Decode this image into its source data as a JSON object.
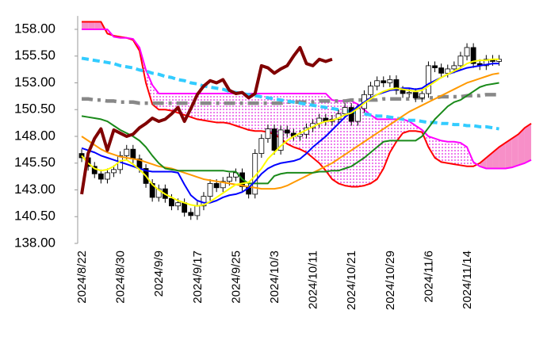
{
  "chart_data": {
    "type": "candlestick",
    "categories": [
      "2024/8/22",
      null,
      null,
      null,
      null,
      null,
      "2024/8/30",
      null,
      null,
      null,
      null,
      null,
      "2024/9/9",
      null,
      null,
      null,
      null,
      null,
      "2024/9/17",
      null,
      null,
      null,
      null,
      null,
      "2024/9/25",
      null,
      null,
      null,
      null,
      null,
      "2024/10/3",
      null,
      null,
      null,
      null,
      null,
      "2024/10/11",
      null,
      null,
      null,
      null,
      null,
      "2024/10/21",
      null,
      null,
      null,
      null,
      null,
      "2024/10/29",
      null,
      null,
      null,
      null,
      null,
      "2024/11/6",
      null,
      null,
      null,
      null,
      null,
      "2024/11/14",
      null,
      null,
      null,
      null,
      null,
      null,
      null,
      null,
      null,
      null
    ],
    "open": [
      146.4,
      146.0,
      145.2,
      144.5,
      144.0,
      144.6,
      144.9,
      146.2,
      146.8,
      145.9,
      145.0,
      143.6,
      142.3,
      143.1,
      142.2,
      141.5,
      141.8,
      140.9,
      140.6,
      141.5,
      142.4,
      143.6,
      143.2,
      143.8,
      144.2,
      144.6,
      143.3,
      142.6,
      146.4,
      147.8,
      148.7,
      146.7,
      148.6,
      148.3,
      148.0,
      148.2,
      148.8,
      149.2,
      149.7,
      149.4,
      149.6,
      150.1,
      150.7,
      149.4,
      150.6,
      151.9,
      152.7,
      153.2,
      153.0,
      153.3,
      152.3,
      152.0,
      152.1,
      151.6,
      152.0,
      154.6,
      154.4,
      153.9,
      154.3,
      154.6,
      155.5,
      156.3,
      154.8,
      154.6,
      155.2,
      155.0,
      null,
      null,
      null,
      null,
      null
    ],
    "high": [
      146.8,
      146.4,
      145.6,
      144.9,
      145.0,
      145.3,
      146.6,
      147.2,
      147.2,
      146.3,
      145.4,
      144.0,
      143.5,
      143.5,
      142.6,
      142.2,
      142.2,
      141.3,
      141.9,
      142.8,
      144.0,
      144.0,
      144.2,
      144.6,
      145.0,
      145.0,
      143.7,
      146.8,
      148.2,
      149.1,
      149.1,
      149.0,
      149.0,
      148.7,
      148.6,
      149.2,
      149.6,
      150.1,
      150.1,
      150.0,
      150.5,
      151.1,
      151.1,
      151.0,
      152.3,
      153.1,
      153.6,
      153.6,
      153.7,
      153.7,
      152.7,
      152.5,
      152.5,
      152.4,
      155.0,
      155.0,
      154.8,
      154.7,
      155.0,
      155.9,
      156.7,
      156.7,
      155.2,
      155.6,
      155.6,
      155.6,
      null,
      null,
      null,
      null,
      null
    ],
    "low": [
      145.6,
      144.8,
      144.1,
      143.6,
      143.6,
      144.2,
      144.5,
      145.8,
      145.5,
      144.6,
      143.2,
      141.9,
      141.9,
      141.8,
      141.1,
      141.1,
      140.5,
      140.2,
      140.2,
      141.1,
      142.0,
      142.8,
      142.8,
      143.4,
      143.8,
      142.9,
      142.2,
      142.2,
      146.0,
      147.4,
      146.3,
      146.3,
      147.9,
      147.6,
      147.6,
      147.8,
      148.4,
      148.8,
      149.0,
      149.0,
      149.2,
      149.7,
      149.0,
      149.0,
      150.2,
      151.5,
      152.3,
      152.6,
      152.6,
      151.9,
      151.6,
      151.6,
      151.2,
      151.2,
      151.6,
      154.0,
      153.5,
      153.5,
      153.9,
      154.2,
      155.1,
      154.4,
      154.2,
      154.2,
      154.6,
      154.6,
      null,
      null,
      null,
      null,
      null
    ],
    "close": [
      146.0,
      145.2,
      144.5,
      144.0,
      144.6,
      144.9,
      146.2,
      146.8,
      145.9,
      145.0,
      143.6,
      142.3,
      143.1,
      142.2,
      141.5,
      141.8,
      140.9,
      140.6,
      141.5,
      142.4,
      143.6,
      143.2,
      143.8,
      144.2,
      144.6,
      143.3,
      142.6,
      146.4,
      147.8,
      148.7,
      146.7,
      148.6,
      148.3,
      148.0,
      148.2,
      148.8,
      149.2,
      149.7,
      149.4,
      149.6,
      150.1,
      150.7,
      149.4,
      150.6,
      151.9,
      152.7,
      153.2,
      153.0,
      153.3,
      152.3,
      152.0,
      152.1,
      151.6,
      152.0,
      154.6,
      154.4,
      153.9,
      154.3,
      154.6,
      155.5,
      156.3,
      154.8,
      154.6,
      155.2,
      155.0,
      155.2,
      null,
      null,
      null,
      null,
      null
    ],
    "up_color": "#ffffff",
    "down_color": "#000000",
    "cloud": {
      "span_a": {
        "color": "#ff0000",
        "values": [
          158.7,
          158.7,
          158.7,
          158.7,
          157.6,
          157.4,
          157.3,
          157.2,
          157.0,
          156.0,
          153.0,
          151.0,
          150.5,
          150.5,
          150.4,
          150.2,
          150.0,
          149.8,
          149.6,
          149.5,
          149.4,
          149.3,
          149.3,
          149.2,
          149.0,
          148.8,
          148.6,
          148.5,
          148.5,
          148.4,
          148.2,
          147.8,
          147.3,
          147.0,
          146.8,
          146.5,
          146.0,
          145.5,
          144.8,
          144.0,
          143.6,
          143.4,
          143.3,
          143.3,
          143.4,
          143.6,
          144.0,
          145.0,
          146.5,
          147.5,
          148.3,
          148.5,
          148.5,
          148.4,
          147.0,
          146.0,
          145.6,
          145.5,
          145.4,
          145.3,
          145.2,
          145.2,
          145.5,
          146.0,
          146.5,
          147.0,
          147.4,
          147.8,
          148.2,
          148.8,
          149.2
        ]
      },
      "span_b": {
        "color": "#ff00ff",
        "values": [
          158.0,
          158.0,
          158.0,
          158.0,
          158.0,
          157.3,
          157.2,
          157.2,
          157.1,
          156.3,
          154.2,
          152.8,
          152.0,
          152.0,
          152.0,
          152.0,
          152.0,
          152.0,
          152.0,
          152.0,
          152.0,
          152.0,
          152.0,
          152.0,
          152.0,
          152.0,
          152.0,
          152.0,
          152.0,
          152.0,
          152.0,
          152.0,
          152.0,
          152.0,
          152.0,
          152.0,
          152.0,
          152.0,
          152.0,
          151.4,
          151.3,
          151.3,
          151.3,
          151.0,
          150.5,
          150.0,
          149.6,
          149.6,
          149.6,
          149.6,
          149.6,
          149.4,
          149.0,
          148.6,
          148.0,
          147.8,
          147.6,
          147.5,
          147.5,
          147.4,
          147.0,
          145.6,
          145.2,
          145.0,
          145.0,
          145.0,
          145.0,
          145.1,
          145.3,
          145.5,
          145.8
        ]
      },
      "a_above_color": "#f78fc8",
      "b_above_color": "#e020e0"
    },
    "series": [
      {
        "color": "#888888",
        "style": "dashdot",
        "values": [
          151.5,
          151.5,
          151.4,
          151.4,
          151.3,
          151.3,
          151.2,
          151.2,
          151.2,
          151.1,
          151.1,
          151.1,
          151.1,
          151.1,
          151.1,
          151.1,
          151.1,
          151.1,
          151.1,
          151.1,
          151.1,
          151.1,
          151.1,
          151.1,
          151.1,
          151.1,
          151.1,
          151.1,
          151.1,
          151.1,
          151.1,
          151.1,
          151.2,
          151.2,
          151.2,
          151.2,
          151.2,
          151.3,
          151.3,
          151.3,
          151.3,
          151.3,
          151.4,
          151.4,
          151.4,
          151.4,
          151.4,
          151.5,
          151.5,
          151.5,
          151.5,
          151.5,
          151.6,
          151.6,
          151.6,
          151.6,
          151.7,
          151.7,
          151.7,
          151.7,
          151.8,
          151.8,
          151.8,
          151.9,
          151.9,
          151.9,
          null,
          null,
          null,
          null,
          null
        ]
      },
      {
        "color": "#33ccff",
        "style": "dashed",
        "values": [
          155.3,
          155.2,
          155.1,
          155.0,
          154.9,
          154.8,
          154.6,
          154.5,
          154.4,
          154.2,
          154.1,
          153.9,
          153.8,
          153.6,
          153.5,
          153.3,
          153.2,
          153.0,
          152.9,
          152.7,
          152.6,
          152.5,
          152.4,
          152.2,
          152.1,
          152.0,
          151.9,
          151.8,
          151.7,
          151.6,
          151.5,
          151.4,
          151.3,
          151.2,
          151.1,
          151.0,
          150.9,
          150.8,
          150.7,
          150.6,
          150.5,
          150.4,
          150.3,
          150.2,
          150.1,
          150.0,
          149.9,
          149.9,
          149.8,
          149.7,
          149.6,
          149.5,
          149.5,
          149.4,
          149.3,
          149.3,
          149.2,
          149.2,
          149.1,
          149.1,
          149.0,
          149.0,
          148.9,
          148.9,
          148.8,
          148.7,
          null,
          null,
          null,
          null,
          null
        ]
      },
      {
        "color": "#ff9900",
        "style": "solid",
        "values": [
          148.0,
          147.6,
          147.2,
          146.8,
          146.5,
          146.3,
          146.1,
          146.0,
          145.9,
          145.8,
          145.6,
          145.4,
          145.2,
          145.1,
          145.0,
          144.8,
          144.6,
          144.4,
          144.2,
          144.0,
          143.9,
          143.8,
          143.7,
          143.6,
          143.5,
          143.4,
          143.3,
          143.2,
          143.1,
          143.1,
          143.1,
          143.2,
          143.4,
          143.7,
          144.0,
          144.3,
          144.6,
          144.9,
          145.2,
          145.5,
          145.9,
          146.3,
          146.7,
          147.1,
          147.5,
          147.9,
          148.3,
          148.7,
          149.1,
          149.5,
          149.9,
          150.3,
          150.6,
          150.9,
          151.2,
          151.5,
          151.8,
          152.1,
          152.4,
          152.7,
          153.0,
          153.2,
          153.4,
          153.6,
          153.8,
          153.9,
          null,
          null,
          null,
          null,
          null
        ]
      },
      {
        "color": "#1a8a1a",
        "style": "solid",
        "values": [
          149.9,
          149.8,
          149.7,
          149.6,
          149.4,
          149.0,
          148.6,
          148.3,
          148.0,
          147.6,
          147.0,
          146.2,
          145.5,
          145.0,
          144.9,
          144.8,
          144.8,
          144.8,
          144.8,
          144.8,
          144.8,
          144.8,
          144.8,
          144.7,
          144.7,
          144.0,
          143.6,
          143.6,
          143.6,
          143.6,
          144.3,
          144.5,
          144.6,
          144.6,
          144.6,
          144.6,
          144.6,
          144.7,
          144.7,
          144.8,
          144.8,
          145.0,
          145.2,
          145.6,
          146.0,
          146.5,
          147.0,
          147.5,
          147.6,
          147.6,
          147.6,
          147.6,
          147.6,
          148.0,
          148.8,
          149.6,
          150.2,
          150.8,
          151.2,
          151.4,
          151.8,
          152.2,
          152.6,
          152.8,
          152.9,
          153.0,
          null,
          null,
          null,
          null,
          null
        ]
      },
      {
        "color": "#0000ff",
        "style": "solid",
        "values": [
          146.9,
          146.7,
          146.5,
          146.2,
          146.0,
          145.8,
          145.6,
          145.4,
          145.2,
          145.0,
          144.8,
          144.7,
          144.7,
          144.7,
          144.7,
          144.6,
          143.5,
          142.5,
          142.0,
          141.8,
          141.8,
          142.0,
          142.3,
          142.5,
          142.6,
          142.8,
          143.2,
          143.8,
          144.5,
          145.0,
          145.3,
          145.5,
          145.6,
          145.7,
          145.9,
          146.4,
          147.0,
          147.5,
          148.0,
          148.6,
          149.2,
          149.8,
          150.3,
          150.8,
          151.2,
          151.6,
          151.9,
          152.1,
          152.3,
          152.4,
          152.5,
          152.5,
          152.4,
          152.5,
          152.9,
          153.2,
          153.5,
          153.8,
          154.0,
          154.2,
          154.4,
          154.5,
          154.6,
          154.7,
          154.8,
          154.8,
          null,
          null,
          null,
          null,
          null
        ]
      },
      {
        "color": "#ffff00",
        "style": "solid",
        "values": [
          146.2,
          145.5,
          145.0,
          144.8,
          144.9,
          145.2,
          145.7,
          145.8,
          145.4,
          144.9,
          144.3,
          143.5,
          143.0,
          142.6,
          142.3,
          142.0,
          141.8,
          141.6,
          141.5,
          141.6,
          141.9,
          142.3,
          142.7,
          143.1,
          143.5,
          143.6,
          143.7,
          144.3,
          145.0,
          145.9,
          146.5,
          147.1,
          147.6,
          148.0,
          148.3,
          148.6,
          148.9,
          149.2,
          149.4,
          149.5,
          149.7,
          150.0,
          150.2,
          150.6,
          151.1,
          151.5,
          151.9,
          152.2,
          152.4,
          152.5,
          152.4,
          152.3,
          152.2,
          152.3,
          152.7,
          153.1,
          153.5,
          153.8,
          154.1,
          154.4,
          154.8,
          155.0,
          155.1,
          155.1,
          155.2,
          155.2,
          null,
          null,
          null,
          null,
          null
        ]
      },
      {
        "color": "#800000",
        "style": "thick",
        "values": [
          142.6,
          146.4,
          147.8,
          148.7,
          146.7,
          148.6,
          148.3,
          148.0,
          148.2,
          148.8,
          149.2,
          149.7,
          149.4,
          149.6,
          150.1,
          150.7,
          149.4,
          150.6,
          151.9,
          152.7,
          153.2,
          153.0,
          153.3,
          152.3,
          152.0,
          152.1,
          151.6,
          152.0,
          154.6,
          154.4,
          153.9,
          154.3,
          154.6,
          155.5,
          156.3,
          154.8,
          154.6,
          155.2,
          155.0,
          155.2,
          null,
          null,
          null,
          null,
          null,
          null,
          null,
          null,
          null,
          null,
          null,
          null,
          null,
          null,
          null,
          null,
          null,
          null,
          null,
          null,
          null,
          null,
          null,
          null,
          null,
          null,
          null,
          null,
          null,
          null,
          null
        ]
      }
    ],
    "ylim": [
      138,
      159.25
    ],
    "yticks": [
      {
        "value": 138,
        "label": "138.00"
      },
      {
        "value": 140.5,
        "label": "140.50"
      },
      {
        "value": 143,
        "label": "143.00"
      },
      {
        "value": 145.5,
        "label": "145.50"
      },
      {
        "value": 148,
        "label": "148.00"
      },
      {
        "value": 150.5,
        "label": "150.50"
      },
      {
        "value": 153,
        "label": "153.00"
      },
      {
        "value": 155.5,
        "label": "155.50"
      },
      {
        "value": 158,
        "label": "158.00"
      }
    ],
    "grid": false
  }
}
